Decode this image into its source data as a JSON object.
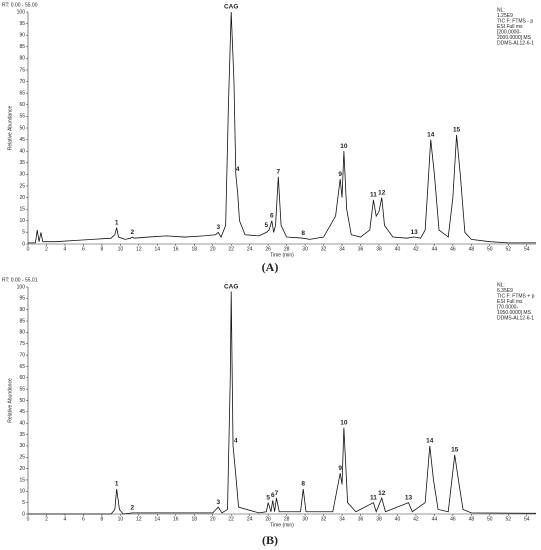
{
  "chart_data": [
    {
      "type": "line",
      "caption": "(A)",
      "range_label": "RT: 0.00 - 55.00",
      "info_lines": [
        "NL:",
        "1.25E9",
        "TIC F: FTMS - p",
        "ESI Full ms",
        "[200.0000-",
        "2000.0000] MS",
        "DDMS-AL12-6-1"
      ],
      "xlabel": "Time (min)",
      "ylabel": "Relative Abundance",
      "color": "#111111",
      "label_color": "#8b1a1a",
      "xlim": [
        0,
        55
      ],
      "ylim": [
        0,
        100
      ],
      "xticks": [
        0,
        2,
        4,
        6,
        8,
        10,
        12,
        14,
        16,
        18,
        20,
        22,
        24,
        26,
        28,
        30,
        32,
        34,
        36,
        38,
        40,
        42,
        44,
        46,
        48,
        50,
        52,
        54
      ],
      "yticks": [
        0,
        5,
        10,
        15,
        20,
        25,
        30,
        35,
        40,
        45,
        50,
        55,
        60,
        65,
        70,
        75,
        80,
        85,
        90,
        95,
        100
      ],
      "x": [
        0,
        0.8,
        1.0,
        1.2,
        1.4,
        1.6,
        3,
        5,
        7,
        9,
        9.4,
        9.6,
        9.8,
        10.5,
        11.1,
        11.3,
        11.5,
        13,
        15,
        17,
        19,
        20.3,
        20.6,
        20.9,
        21.4,
        21.7,
        22.0,
        22.3,
        22.5,
        22.7,
        22.9,
        23.5,
        25,
        25.8,
        26.1,
        26.4,
        26.6,
        26.8,
        27.1,
        27.4,
        28,
        29.8,
        30.5,
        32,
        33.3,
        33.8,
        34.0,
        34.2,
        34.5,
        35,
        36,
        37.0,
        37.4,
        37.7,
        38.0,
        38.3,
        38.6,
        39.5,
        41,
        41.8,
        42.5,
        43.0,
        43.3,
        43.6,
        44.0,
        44.5,
        45.5,
        46.0,
        46.4,
        46.8,
        47.3,
        48,
        50,
        52,
        55
      ],
      "values": [
        0.5,
        0.5,
        6,
        1,
        5,
        1,
        1,
        1.5,
        2,
        2.5,
        4,
        7,
        3,
        2,
        2.5,
        3,
        2.5,
        3,
        3.5,
        3,
        3.5,
        4,
        5,
        3,
        8,
        60,
        100,
        70,
        30,
        22,
        10,
        4,
        3.5,
        5,
        6,
        10,
        5,
        8,
        29,
        8,
        3,
        2.5,
        2,
        3,
        12,
        28,
        20,
        40,
        15,
        4,
        3,
        6,
        19,
        12,
        14,
        20,
        8,
        3,
        2.5,
        3,
        2.5,
        6,
        25,
        45,
        30,
        6,
        3,
        20,
        47,
        30,
        5,
        2,
        1,
        0.5,
        0.5
      ],
      "peak_labels": [
        {
          "text": "1",
          "x": 9.6
        },
        {
          "text": "2",
          "x": 11.3
        },
        {
          "text": "3",
          "x": 20.6
        },
        {
          "text": "CAG",
          "x": 22.0
        },
        {
          "text": "4",
          "x": 22.7
        },
        {
          "text": "5",
          "x": 25.8
        },
        {
          "text": "6",
          "x": 26.4
        },
        {
          "text": "7",
          "x": 27.1
        },
        {
          "text": "8",
          "x": 29.8
        },
        {
          "text": "9",
          "x": 33.8
        },
        {
          "text": "10",
          "x": 34.2
        },
        {
          "text": "11",
          "x": 37.4
        },
        {
          "text": "12",
          "x": 38.3
        },
        {
          "text": "13",
          "x": 41.8
        },
        {
          "text": "14",
          "x": 43.6
        },
        {
          "text": "15",
          "x": 46.4
        }
      ]
    },
    {
      "type": "line",
      "caption": "(B)",
      "range_label": "RT: 0.00 - 55.01",
      "info_lines": [
        "NL:",
        "6.35E9",
        "TIC F: FTMS + p",
        "ESI Full ms",
        "[70.0000-",
        "1050.0000] MS",
        "DDMS-AL12-6-1"
      ],
      "xlabel": "Time (min)",
      "ylabel": "Relative Abundance",
      "color": "#111111",
      "label_color": "#8b1a1a",
      "xlim": [
        0,
        55
      ],
      "ylim": [
        0,
        100
      ],
      "xticks": [
        0,
        2,
        4,
        6,
        8,
        10,
        12,
        14,
        16,
        18,
        20,
        22,
        24,
        26,
        28,
        30,
        32,
        34,
        36,
        38,
        40,
        42,
        44,
        46,
        48,
        50,
        52,
        54
      ],
      "yticks": [
        0,
        5,
        10,
        15,
        20,
        25,
        30,
        35,
        40,
        45,
        50,
        55,
        60,
        65,
        70,
        75,
        80,
        85,
        90,
        95,
        100
      ],
      "x": [
        0,
        9,
        9.4,
        9.6,
        9.9,
        10.3,
        11.3,
        20,
        20.6,
        21,
        21.6,
        21.9,
        22.0,
        22.2,
        22.5,
        22.8,
        25,
        25.8,
        26.0,
        26.3,
        26.5,
        26.7,
        26.9,
        27.2,
        29.5,
        29.8,
        30.1,
        33,
        33.8,
        34.0,
        34.2,
        34.6,
        35.5,
        37.4,
        37.7,
        38.3,
        38.7,
        41.2,
        41.6,
        43.0,
        43.5,
        43.9,
        44.4,
        45.5,
        46.2,
        46.6,
        47.1,
        48,
        55
      ],
      "values": [
        0,
        0,
        2,
        11,
        2,
        0,
        0.5,
        0.5,
        3,
        0.5,
        2,
        60,
        98,
        30,
        17,
        3,
        0.5,
        1,
        5,
        1,
        6,
        1,
        7,
        1,
        1,
        11,
        1,
        1,
        18,
        13,
        38,
        5,
        1,
        5,
        1,
        7,
        1,
        5,
        1,
        5,
        30,
        15,
        2,
        1,
        26,
        15,
        2,
        0.5,
        0.3
      ],
      "peak_labels": [
        {
          "text": "1",
          "x": 9.6
        },
        {
          "text": "2",
          "x": 11.3
        },
        {
          "text": "3",
          "x": 20.6
        },
        {
          "text": "CAG",
          "x": 22.0
        },
        {
          "text": "4",
          "x": 22.5
        },
        {
          "text": "5",
          "x": 26.0
        },
        {
          "text": "6",
          "x": 26.5
        },
        {
          "text": "7",
          "x": 26.9
        },
        {
          "text": "8",
          "x": 29.8
        },
        {
          "text": "9",
          "x": 33.8
        },
        {
          "text": "10",
          "x": 34.2
        },
        {
          "text": "11",
          "x": 37.4
        },
        {
          "text": "12",
          "x": 38.3
        },
        {
          "text": "13",
          "x": 41.2
        },
        {
          "text": "14",
          "x": 43.5
        },
        {
          "text": "15",
          "x": 46.2
        }
      ]
    }
  ]
}
